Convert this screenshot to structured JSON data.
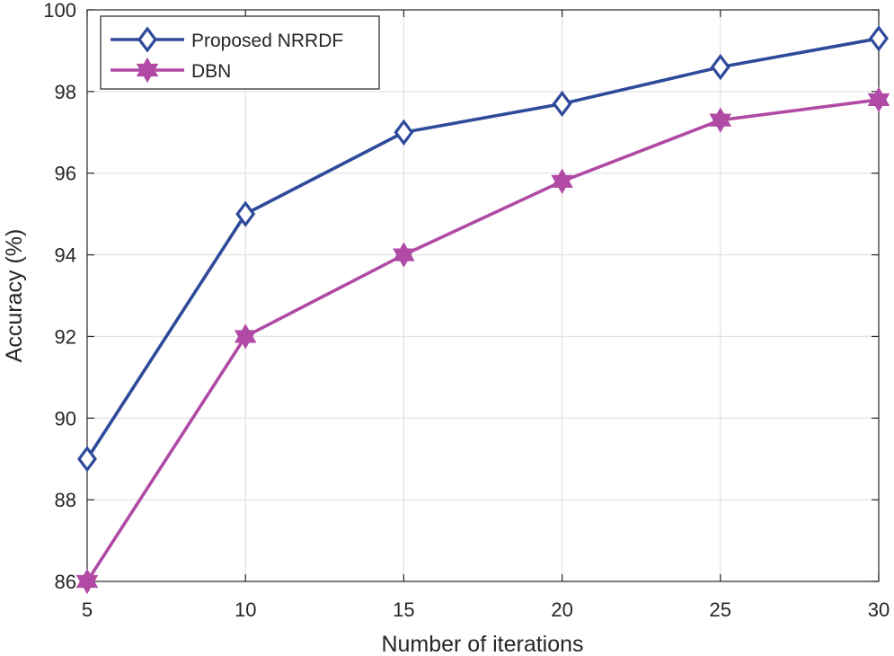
{
  "chart_data": {
    "type": "line",
    "title": "",
    "xlabel": "Number of iterations",
    "ylabel": "Accuracy (%)",
    "x": [
      5,
      10,
      15,
      20,
      25,
      30
    ],
    "xlim": [
      5,
      30
    ],
    "ylim": [
      86,
      100
    ],
    "xticks": [
      "5",
      "10",
      "15",
      "20",
      "25",
      "30"
    ],
    "yticks": [
      "86",
      "88",
      "90",
      "92",
      "94",
      "96",
      "98",
      "100"
    ],
    "grid": true,
    "legend_position": "top-left",
    "series": [
      {
        "name": "Proposed NRRDF",
        "values": [
          89.0,
          95.0,
          97.0,
          97.7,
          98.6,
          99.3
        ],
        "color": "#2e4a9a",
        "marker": "diamond"
      },
      {
        "name": "DBN",
        "values": [
          86.0,
          92.0,
          94.0,
          95.8,
          97.3,
          97.8
        ],
        "color": "#b04aa5",
        "marker": "hexagram"
      }
    ]
  }
}
